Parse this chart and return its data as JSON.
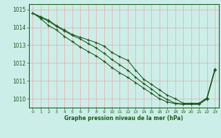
{
  "xlabel": "Graphe pression niveau de la mer (hPa)",
  "ylim": [
    1009.5,
    1015.3
  ],
  "xlim": [
    -0.5,
    23.5
  ],
  "yticks": [
    1010,
    1011,
    1012,
    1013,
    1014,
    1015
  ],
  "xticks": [
    0,
    1,
    2,
    3,
    4,
    5,
    6,
    7,
    8,
    9,
    10,
    11,
    12,
    13,
    14,
    15,
    16,
    17,
    18,
    19,
    20,
    21,
    22,
    23
  ],
  "bg_color": "#cceee8",
  "grid_color": "#e8b0b0",
  "line_color": "#1a5c1a",
  "lines": [
    [
      1014.8,
      1014.6,
      1014.4,
      1014.1,
      1013.85,
      1013.6,
      1013.45,
      1013.3,
      1013.15,
      1012.95,
      1012.6,
      1012.35,
      1012.15,
      1011.6,
      1011.1,
      1010.8,
      1010.5,
      1010.2,
      1010.0,
      1009.75,
      1009.75,
      1009.75,
      1010.05,
      1011.65
    ],
    [
      1014.8,
      1014.55,
      1014.35,
      1014.05,
      1013.8,
      1013.55,
      1013.35,
      1013.1,
      1012.85,
      1012.55,
      1012.2,
      1011.9,
      1011.6,
      1011.2,
      1010.85,
      1010.55,
      1010.2,
      1009.95,
      1009.75,
      1009.72,
      1009.72,
      1009.72,
      1010.02,
      1011.62
    ],
    [
      1014.8,
      1014.5,
      1014.1,
      1013.85,
      1013.5,
      1013.2,
      1012.9,
      1012.65,
      1012.4,
      1012.1,
      1011.75,
      1011.45,
      1011.2,
      1010.9,
      1010.6,
      1010.3,
      1010.0,
      1009.82,
      1009.72,
      1009.68,
      1009.68,
      1009.68,
      1009.98,
      1011.58
    ]
  ]
}
